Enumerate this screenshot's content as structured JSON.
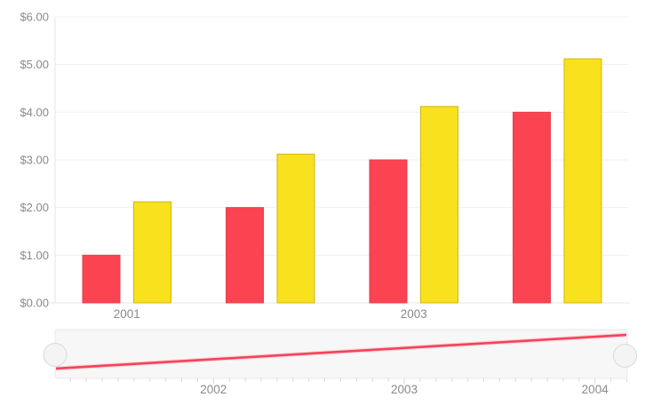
{
  "chart_data": {
    "type": "bar",
    "title": "",
    "xlabel": "",
    "ylabel": "",
    "categories": [
      "2001",
      "2002",
      "2003",
      "2004"
    ],
    "series": [
      {
        "name": "red",
        "fill": "#fb4352",
        "stroke": "#e63f4e",
        "values": [
          1.0,
          2.0,
          3.0,
          4.0
        ]
      },
      {
        "name": "yellow",
        "fill": "#f8e11d",
        "stroke": "#d3b412",
        "values": [
          2.12,
          3.12,
          4.12,
          5.12
        ]
      }
    ],
    "ylim": [
      0,
      6
    ],
    "y_ticks": [
      0,
      1,
      2,
      3,
      4,
      5,
      6
    ],
    "y_tick_labels": [
      "$0.00",
      "$1.00",
      "$2.00",
      "$3.00",
      "$4.00",
      "$5.00",
      "$6.00"
    ],
    "x_visible_labels": [
      "2001",
      "2003"
    ],
    "grid": true,
    "legend_position": "none"
  },
  "navigator": {
    "type": "line",
    "preview_of_series": "red",
    "series_values": [
      1,
      2,
      3,
      4
    ],
    "x_range": [
      "2001",
      "2004"
    ],
    "x_labels": [
      "2002",
      "2003",
      "2004"
    ],
    "line_color": "#f63a52",
    "track_color": "#f7f7f7",
    "track_border": "#e9e9e9",
    "handle_fill": "#f4f4f4",
    "handle_stroke": "#d9d9d9",
    "tick_color": "#d9d9d9"
  },
  "colors": {
    "background": "#ffffff",
    "grid": "#f0f0f0",
    "axis": "#e4e4e4",
    "label": "#8a8a8a"
  }
}
